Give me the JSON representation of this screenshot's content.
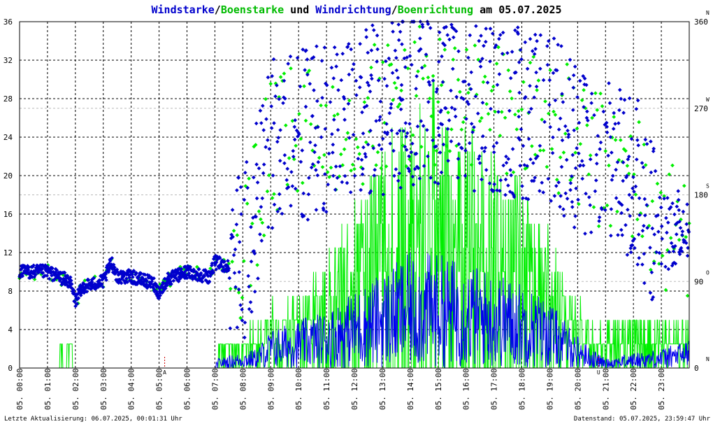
{
  "chart_data": {
    "type": "line+scatter",
    "title_parts": [
      {
        "text": "Windstarke",
        "color": "#0000cc"
      },
      {
        "text": "/",
        "color": "#000000"
      },
      {
        "text": "Boenstarke",
        "color": "#00bb00"
      },
      {
        "text": " und ",
        "color": "#000000"
      },
      {
        "text": "Windrichtung",
        "color": "#0000cc"
      },
      {
        "text": "/",
        "color": "#000000"
      },
      {
        "text": "Boenrichtung",
        "color": "#00bb00"
      },
      {
        "text": " am 05.07.2025",
        "color": "#000000"
      }
    ],
    "y_left": {
      "min": 0,
      "max": 36,
      "ticks": [
        "0",
        "4",
        "8",
        "12",
        "16",
        "20",
        "24",
        "28",
        "32",
        "36"
      ]
    },
    "y_right": {
      "min": 0,
      "max": 360,
      "ticks": [
        "0",
        "90",
        "180",
        "270",
        "360"
      ],
      "compass": [
        "N",
        "O",
        "S",
        "W",
        "N"
      ]
    },
    "x_ticks": [
      "05. 00:00",
      "05. 01:00",
      "05. 02:00",
      "05. 03:00",
      "05. 04:00",
      "05. 05:00",
      "05. 06:00",
      "05. 07:00",
      "05. 08:00",
      "05. 09:00",
      "05. 10:00",
      "05. 11:00",
      "05. 12:00",
      "05. 13:00",
      "05. 14:00",
      "05. 15:00",
      "05. 16:00",
      "05. 17:00",
      "05. 18:00",
      "05. 19:00",
      "05. 20:00",
      "05. 21:00",
      "05. 22:00",
      "05. 23:00"
    ],
    "markers": [
      {
        "hour": 5.2,
        "label": "A"
      },
      {
        "hour": 20.75,
        "label": "U"
      }
    ],
    "series": [
      {
        "name": "Windstarke",
        "kind": "line",
        "color": "#0000ee"
      },
      {
        "name": "Boenstarke",
        "kind": "line",
        "color": "#00ee00"
      },
      {
        "name": "Windrichtung",
        "kind": "points",
        "color": "#0000cc"
      },
      {
        "name": "Boenrichtung",
        "kind": "points",
        "color": "#00ee00"
      }
    ],
    "wind_speed_profile": [
      [
        0,
        0
      ],
      [
        7,
        0
      ],
      [
        7.1,
        0.5
      ],
      [
        8.5,
        1
      ],
      [
        9,
        2
      ],
      [
        10,
        2.5
      ],
      [
        11,
        3
      ],
      [
        12,
        4
      ],
      [
        13,
        5
      ],
      [
        14,
        6
      ],
      [
        15,
        6
      ],
      [
        16,
        5.5
      ],
      [
        17,
        5
      ],
      [
        18,
        4.5
      ],
      [
        19,
        3.5
      ],
      [
        19.8,
        2
      ],
      [
        20.5,
        1
      ],
      [
        21,
        0.5
      ],
      [
        22,
        0.8
      ],
      [
        23,
        1
      ],
      [
        24,
        1.5
      ]
    ],
    "gust_speed_profile": [
      [
        0,
        0
      ],
      [
        1.4,
        0
      ],
      [
        1.5,
        2.5
      ],
      [
        1.6,
        0
      ],
      [
        1.8,
        2.5
      ],
      [
        2,
        0
      ],
      [
        7,
        0
      ],
      [
        7.2,
        2.5
      ],
      [
        8,
        2.5
      ],
      [
        9,
        4.5
      ],
      [
        10,
        5
      ],
      [
        11,
        8
      ],
      [
        12,
        12
      ],
      [
        13,
        16
      ],
      [
        14,
        20
      ],
      [
        15,
        21
      ],
      [
        16,
        18
      ],
      [
        17,
        16
      ],
      [
        18,
        15
      ],
      [
        19,
        10
      ],
      [
        19.8,
        6
      ],
      [
        20.5,
        3
      ],
      [
        21,
        4
      ],
      [
        22,
        4.5
      ],
      [
        23,
        3
      ],
      [
        24,
        3
      ]
    ],
    "direction_profile": [
      [
        0,
        100
      ],
      [
        1,
        100
      ],
      [
        1.8,
        90
      ],
      [
        2,
        70
      ],
      [
        2.3,
        85
      ],
      [
        3,
        90
      ],
      [
        3.3,
        110
      ],
      [
        3.5,
        95
      ],
      [
        4,
        95
      ],
      [
        4.8,
        88
      ],
      [
        5,
        78
      ],
      [
        5.3,
        92
      ],
      [
        6,
        100
      ],
      [
        6.8,
        95
      ],
      [
        7,
        110
      ],
      [
        7.5,
        105
      ],
      [
        8,
        110
      ],
      [
        8.5,
        170
      ],
      [
        9,
        230
      ],
      [
        10,
        240
      ],
      [
        11,
        250
      ],
      [
        12,
        260
      ],
      [
        13,
        270
      ],
      [
        14,
        280
      ],
      [
        15,
        280
      ],
      [
        16,
        270
      ],
      [
        17,
        270
      ],
      [
        18,
        265
      ],
      [
        19,
        260
      ],
      [
        20,
        230
      ],
      [
        21,
        210
      ],
      [
        22,
        200
      ],
      [
        23,
        140
      ],
      [
        24,
        150
      ]
    ],
    "footer_left": "Letzte Aktualisierung: 06.07.2025, 00:01:31 Uhr",
    "footer_right": "Datenstand: 05.07.2025, 23:59:47 Uhr"
  }
}
